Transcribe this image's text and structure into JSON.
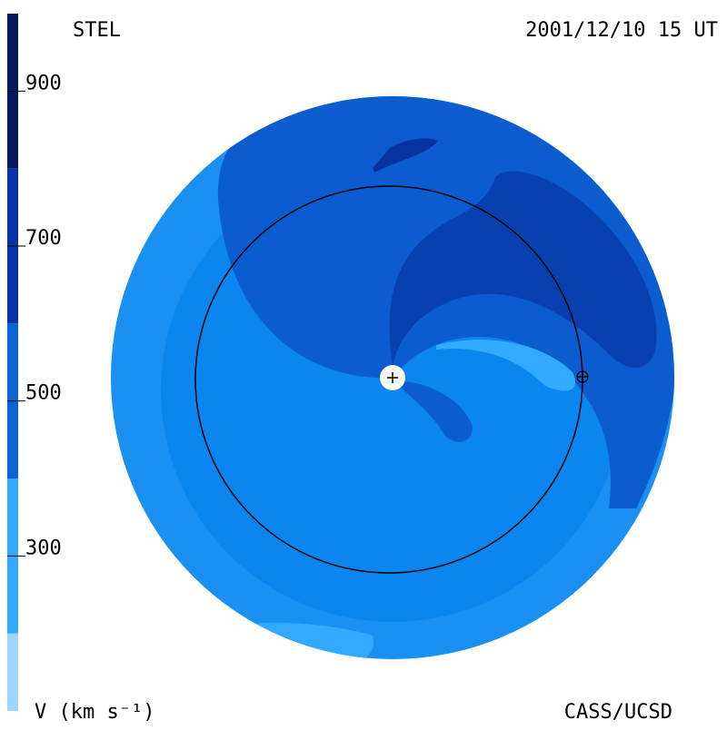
{
  "header": {
    "left": "STEL",
    "right": "2001/12/10 15 UT"
  },
  "footer": {
    "left": "V (km s⁻¹)",
    "right": "CASS/UCSD"
  },
  "colorbar": {
    "lim": [
      100,
      1000
    ],
    "ticks": [
      300,
      500,
      700,
      900
    ],
    "bands": [
      {
        "from": 100,
        "to": 200,
        "color": "#9fd6ff"
      },
      {
        "from": 200,
        "to": 400,
        "color": "#33aaff"
      },
      {
        "from": 400,
        "to": 600,
        "color": "#0a62d4"
      },
      {
        "from": 600,
        "to": 800,
        "color": "#0834a8"
      },
      {
        "from": 800,
        "to": 1000,
        "color": "#05185e"
      }
    ]
  }
}
